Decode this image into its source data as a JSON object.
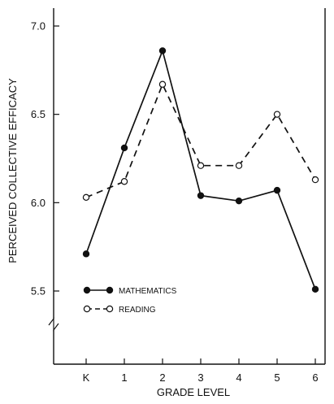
{
  "chart_data": {
    "type": "line",
    "title": "",
    "xlabel": "GRADE LEVEL",
    "ylabel": "PERCEIVED COLLECTIVE EFFICACY",
    "categories": [
      "K",
      "1",
      "2",
      "3",
      "4",
      "5",
      "6"
    ],
    "y_ticks": [
      "5.5",
      "6.0",
      "6.5",
      "7.0"
    ],
    "ylim": [
      5.5,
      7.0
    ],
    "axis_break": true,
    "grid": false,
    "legend_position": "lower-left",
    "series": [
      {
        "name": "MATHEMATICS",
        "marker": "filled-circle",
        "line": "solid",
        "values": [
          5.71,
          6.31,
          6.86,
          6.04,
          6.01,
          6.07,
          5.51
        ]
      },
      {
        "name": "READING",
        "marker": "open-circle",
        "line": "dashed",
        "values": [
          6.03,
          6.12,
          6.67,
          6.21,
          6.21,
          6.5,
          6.13
        ]
      }
    ]
  }
}
